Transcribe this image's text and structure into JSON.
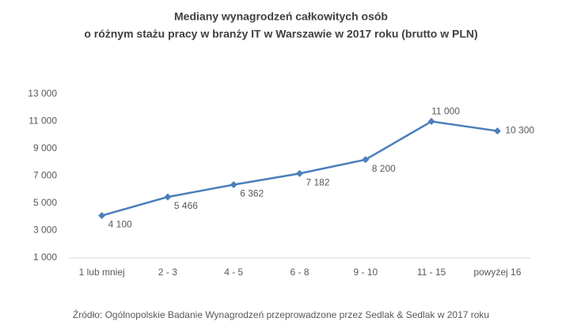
{
  "chart_data": {
    "type": "line",
    "title": [
      "Mediany wynagrodzeń całkowitych osób",
      "o różnym stażu pracy w branży IT w Warszawie w 2017 roku (brutto w PLN)"
    ],
    "categories": [
      "1 lub mniej",
      "2 - 3",
      "4 - 5",
      "6 - 8",
      "9 - 10",
      "11 - 15",
      "powyżej 16"
    ],
    "values": [
      4100,
      5466,
      6362,
      7182,
      8200,
      11000,
      10300
    ],
    "value_labels": [
      "4 100",
      "5 466",
      "6 362",
      "7 182",
      "8 200",
      "11 000",
      "10 300"
    ],
    "color": "#4a7ebb",
    "ylim": [
      1000,
      13000
    ],
    "yticks": [
      {
        "value": 1000,
        "label": "1 000"
      },
      {
        "value": 3000,
        "label": "3 000"
      },
      {
        "value": 5000,
        "label": "5 000"
      },
      {
        "value": 7000,
        "label": "7 000"
      },
      {
        "value": 9000,
        "label": "9 000"
      },
      {
        "value": 11000,
        "label": "11 000"
      },
      {
        "value": 13000,
        "label": "13 000"
      }
    ],
    "grid": false,
    "source": "Źródło: Ogólnopolskie Badanie Wynagrodzeń przeprowadzone przez Sedlak & Sedlak w 2017 roku"
  }
}
